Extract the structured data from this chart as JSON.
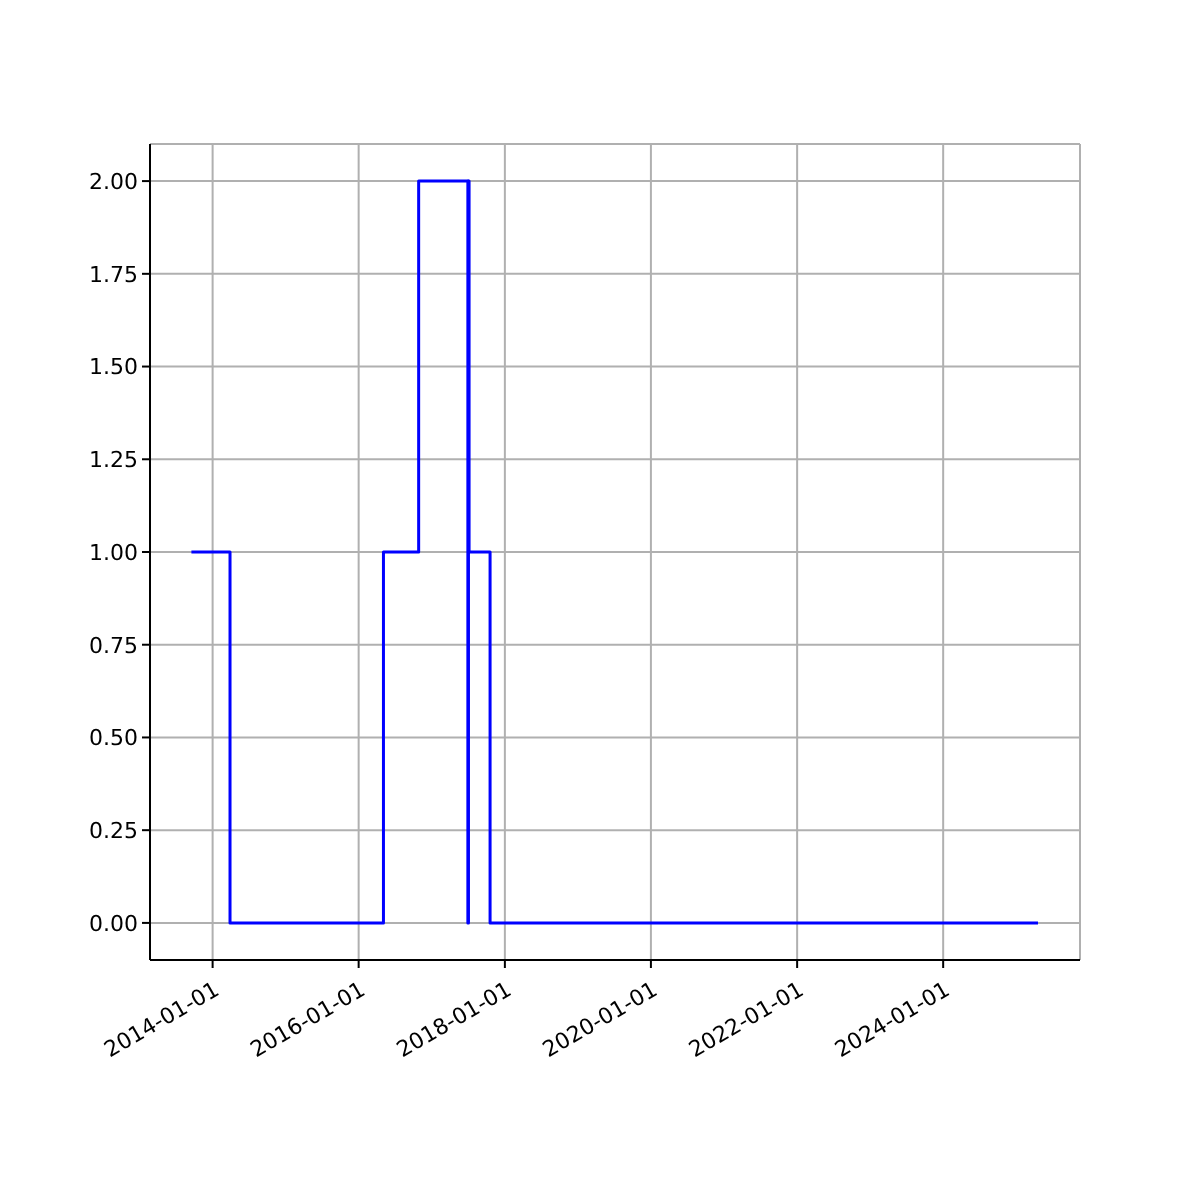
{
  "chart_data": {
    "type": "step",
    "x": [
      "2013-09-17",
      "2014-03-29",
      "2016-05-04",
      "2016-10-27",
      "2017-06-30",
      "2017-07-03",
      "2017-07-06",
      "2017-10-19",
      "2025-04-19"
    ],
    "values": [
      1,
      0,
      1,
      2,
      0,
      2,
      1,
      0,
      0
    ],
    "color": "#0000ff",
    "xlim": [
      "2013-02-22",
      "2025-11-15"
    ],
    "xticks": [
      "2014-01-01",
      "2016-01-01",
      "2018-01-01",
      "2020-01-01",
      "2022-01-01",
      "2024-01-01"
    ],
    "ylim": [
      -0.1,
      2.1
    ],
    "yticks": [
      {
        "value": 0,
        "label": "0.00"
      },
      {
        "value": 0.25,
        "label": "0.25"
      },
      {
        "value": 0.5,
        "label": "0.50"
      },
      {
        "value": 0.75,
        "label": "0.75"
      },
      {
        "value": 1,
        "label": "1.00"
      },
      {
        "value": 1.25,
        "label": "1.25"
      },
      {
        "value": 1.5,
        "label": "1.50"
      },
      {
        "value": 1.75,
        "label": "1.75"
      },
      {
        "value": 2,
        "label": "2.00"
      }
    ],
    "grid": true
  }
}
